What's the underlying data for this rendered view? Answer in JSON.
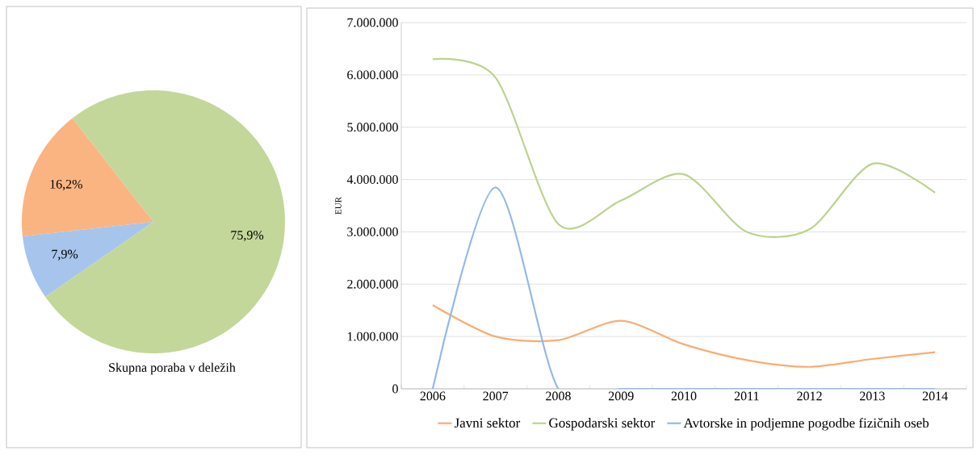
{
  "chart_data": [
    {
      "type": "pie",
      "title": "Skupna poraba v deležih",
      "categories": [
        null,
        null,
        null
      ],
      "values": [
        16.2,
        7.9,
        75.9
      ],
      "colors": [
        "#fab482",
        "#a6c4ec",
        "#c4d79b"
      ],
      "value_labels": [
        "16,2%",
        "7,9%",
        "75,9%"
      ]
    },
    {
      "type": "line",
      "categories": [
        "2006",
        "2007",
        "2008",
        "2009",
        "2010",
        "2011",
        "2012",
        "2013",
        "2014"
      ],
      "series": [
        {
          "name": "Javni sektor",
          "color": "#f9ac72",
          "values": [
            1600000,
            1000000,
            930000,
            1300000,
            850000,
            550000,
            420000,
            570000,
            700000
          ]
        },
        {
          "name": "Gospodarski sektor",
          "color": "#bcd38e",
          "values": [
            6300000,
            5950000,
            3150000,
            3600000,
            4100000,
            3000000,
            3050000,
            4300000,
            3750000
          ]
        },
        {
          "name": "Avtorske in podjemne pogodbe fizičnih oseb",
          "color": "#95b9e6",
          "values": [
            0,
            3850000,
            0,
            0,
            0,
            0,
            0,
            0,
            0
          ]
        }
      ],
      "ylabel": "EUR",
      "ylim": [
        0,
        7000000
      ],
      "yticks": [
        0,
        {
          "value": 1000000,
          "label": "1.000.000"
        },
        {
          "value": 2000000,
          "label": "2.000.000"
        },
        {
          "value": 3000000,
          "label": "3.000.000"
        },
        {
          "value": 4000000,
          "label": "4.000.000"
        },
        {
          "value": 5000000,
          "label": "5.000.000"
        },
        {
          "value": 6000000,
          "label": "6.000.000"
        },
        {
          "value": 7000000,
          "label": "7.000.000"
        }
      ],
      "grid": "y",
      "legend": "bottom"
    }
  ]
}
